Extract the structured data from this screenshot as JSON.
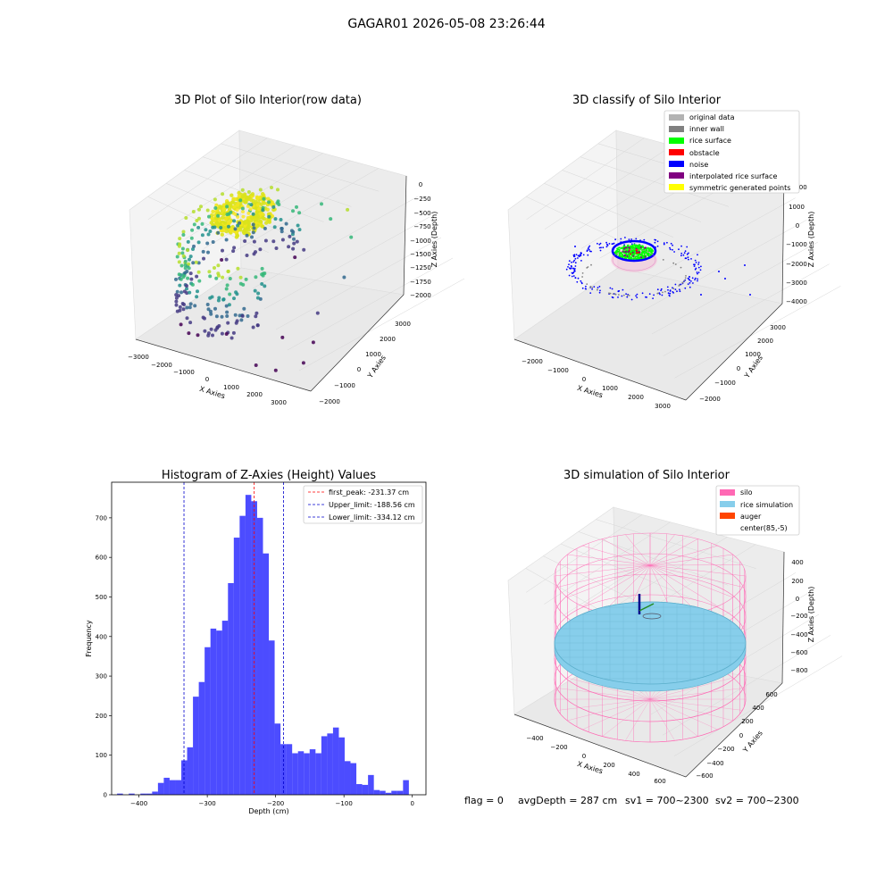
{
  "suptitle": "GAGAR01 2026-05-08 23:26:44",
  "status_line": {
    "flag": "flag = 0",
    "avg_depth": "avgDepth = 287 cm",
    "sv1": "sv1 = 700~2300",
    "sv2": "sv2 = 700~2300"
  },
  "chart_data": [
    {
      "type": "scatter",
      "title": "3D Plot of Silo Interior(row data)",
      "xlabel": "X Axies",
      "ylabel": "Y Axies",
      "zlabel": "Z Axies (Depth)",
      "x_ticks": [
        "−3000",
        "−2000",
        "−1000",
        "0",
        "1000",
        "2000",
        "3000"
      ],
      "y_ticks": [
        "−2000",
        "−1000",
        "0",
        "1000",
        "2000",
        "3000"
      ],
      "z_ticks": [
        "0",
        "−250",
        "−500",
        "−750",
        "−1000",
        "−1250",
        "−1500",
        "−1750",
        "−2000"
      ],
      "colormap": [
        "#fde725",
        "#b5de2b",
        "#35b779",
        "#21918c",
        "#31688e",
        "#443983",
        "#440154"
      ],
      "points_xyz": [
        [
          0,
          0,
          -250
        ],
        [
          200,
          0,
          -250
        ],
        [
          -200,
          0,
          -250
        ],
        [
          0,
          200,
          -250
        ],
        [
          0,
          -200,
          -250
        ],
        [
          141,
          141,
          -250
        ],
        [
          -141,
          -141,
          -250
        ],
        [
          141,
          -141,
          -250
        ],
        [
          -141,
          141,
          -250
        ],
        [
          -1800,
          -600,
          -1500
        ],
        [
          -1500,
          -900,
          -1650
        ],
        [
          -1200,
          -1200,
          -1700
        ],
        [
          -900,
          -1400,
          -1800
        ],
        [
          -1900,
          200,
          -1300
        ],
        [
          -1600,
          600,
          -1100
        ],
        [
          -1300,
          900,
          -950
        ],
        [
          -1000,
          1100,
          -900
        ],
        [
          1800,
          1400,
          -800
        ],
        [
          1300,
          1600,
          -700
        ],
        [
          2300,
          1500,
          -600
        ],
        [
          2700,
          1200,
          -900
        ],
        [
          3000,
          600,
          -1300
        ],
        [
          2800,
          -200,
          -1600
        ],
        [
          2200,
          -900,
          -1800
        ],
        [
          3100,
          -700,
          -1850
        ],
        [
          3300,
          -1300,
          -1900
        ],
        [
          2600,
          -1600,
          -2000
        ],
        [
          2000,
          -1700,
          -1950
        ]
      ]
    },
    {
      "type": "scatter",
      "title": "3D classify of Silo Interior",
      "xlabel": "X Axies",
      "ylabel": "Y Axies",
      "zlabel": "Z Axies (Depth)",
      "x_ticks": [
        "−2000",
        "−1000",
        "0",
        "1000",
        "2000",
        "3000"
      ],
      "y_ticks": [
        "−2000",
        "−1000",
        "0",
        "1000",
        "2000",
        "3000"
      ],
      "z_ticks": [
        "1000",
        "0",
        "−1000",
        "−2000",
        "−3000",
        "−4000"
      ],
      "z_top_tick": "000",
      "legend": [
        {
          "label": "original data",
          "color": "#b3b3b3"
        },
        {
          "label": "inner wall",
          "color": "#808080"
        },
        {
          "label": "rice surface",
          "color": "#00ff00"
        },
        {
          "label": "obstacle",
          "color": "#ff0000"
        },
        {
          "label": "noise",
          "color": "#0000ff"
        },
        {
          "label": "interpolated rice surface",
          "color": "#800080"
        },
        {
          "label": "symmetric generated points",
          "color": "#ffff00"
        }
      ],
      "legend_loc": "upper right"
    },
    {
      "type": "bar",
      "title": "Histogram of Z-Axies (Height) Values",
      "xlabel": "Depth (cm)",
      "ylabel": "Frequency",
      "xlim": [
        -440,
        20
      ],
      "ylim": [
        0,
        790
      ],
      "x_ticks": [
        -400,
        -300,
        -200,
        -100,
        0
      ],
      "y_ticks": [
        0,
        100,
        200,
        300,
        400,
        500,
        600,
        700
      ],
      "bar_color": "#0000ff",
      "bin_width": 8.54,
      "bin_start": -432,
      "values": [
        3,
        0,
        3,
        0,
        3,
        3,
        8,
        30,
        43,
        37,
        37,
        87,
        120,
        248,
        285,
        373,
        420,
        415,
        440,
        535,
        650,
        705,
        758,
        742,
        700,
        610,
        390,
        180,
        128,
        128,
        105,
        110,
        105,
        115,
        105,
        148,
        155,
        170,
        145,
        85,
        80,
        27,
        25,
        50,
        12,
        10,
        5,
        10,
        10,
        37
      ],
      "vlines": [
        {
          "x": -231.37,
          "color": "#ff0000",
          "label": "first_peak: -231.37 cm"
        },
        {
          "x": -188.56,
          "color": "#0000cc",
          "label": "Upper_limit: -188.56 cm"
        },
        {
          "x": -334.12,
          "color": "#0000cc",
          "label": "Lower_limit: -334.12 cm"
        }
      ]
    },
    {
      "type": "scatter",
      "title": "3D simulation of Silo Interior",
      "xlabel": "X Axies",
      "ylabel": "Y Axies",
      "zlabel": "Z Axies (Depth)",
      "x_ticks": [
        "−400",
        "−200",
        "0",
        "200",
        "400",
        "600"
      ],
      "y_ticks": [
        "−600",
        "−400",
        "−200",
        "0",
        "200",
        "400",
        "600"
      ],
      "z_ticks": [
        "400",
        "200",
        "0",
        "−200",
        "−400",
        "−600",
        "−800"
      ],
      "legend": [
        {
          "label": "silo",
          "color": "#ff69b4"
        },
        {
          "label": "rice simulation",
          "color": "#87ceeb"
        },
        {
          "label": "auger",
          "color": "#ff4500"
        },
        {
          "label": "center(85,-5)",
          "color": "none"
        }
      ],
      "legend_loc": "upper right"
    }
  ]
}
